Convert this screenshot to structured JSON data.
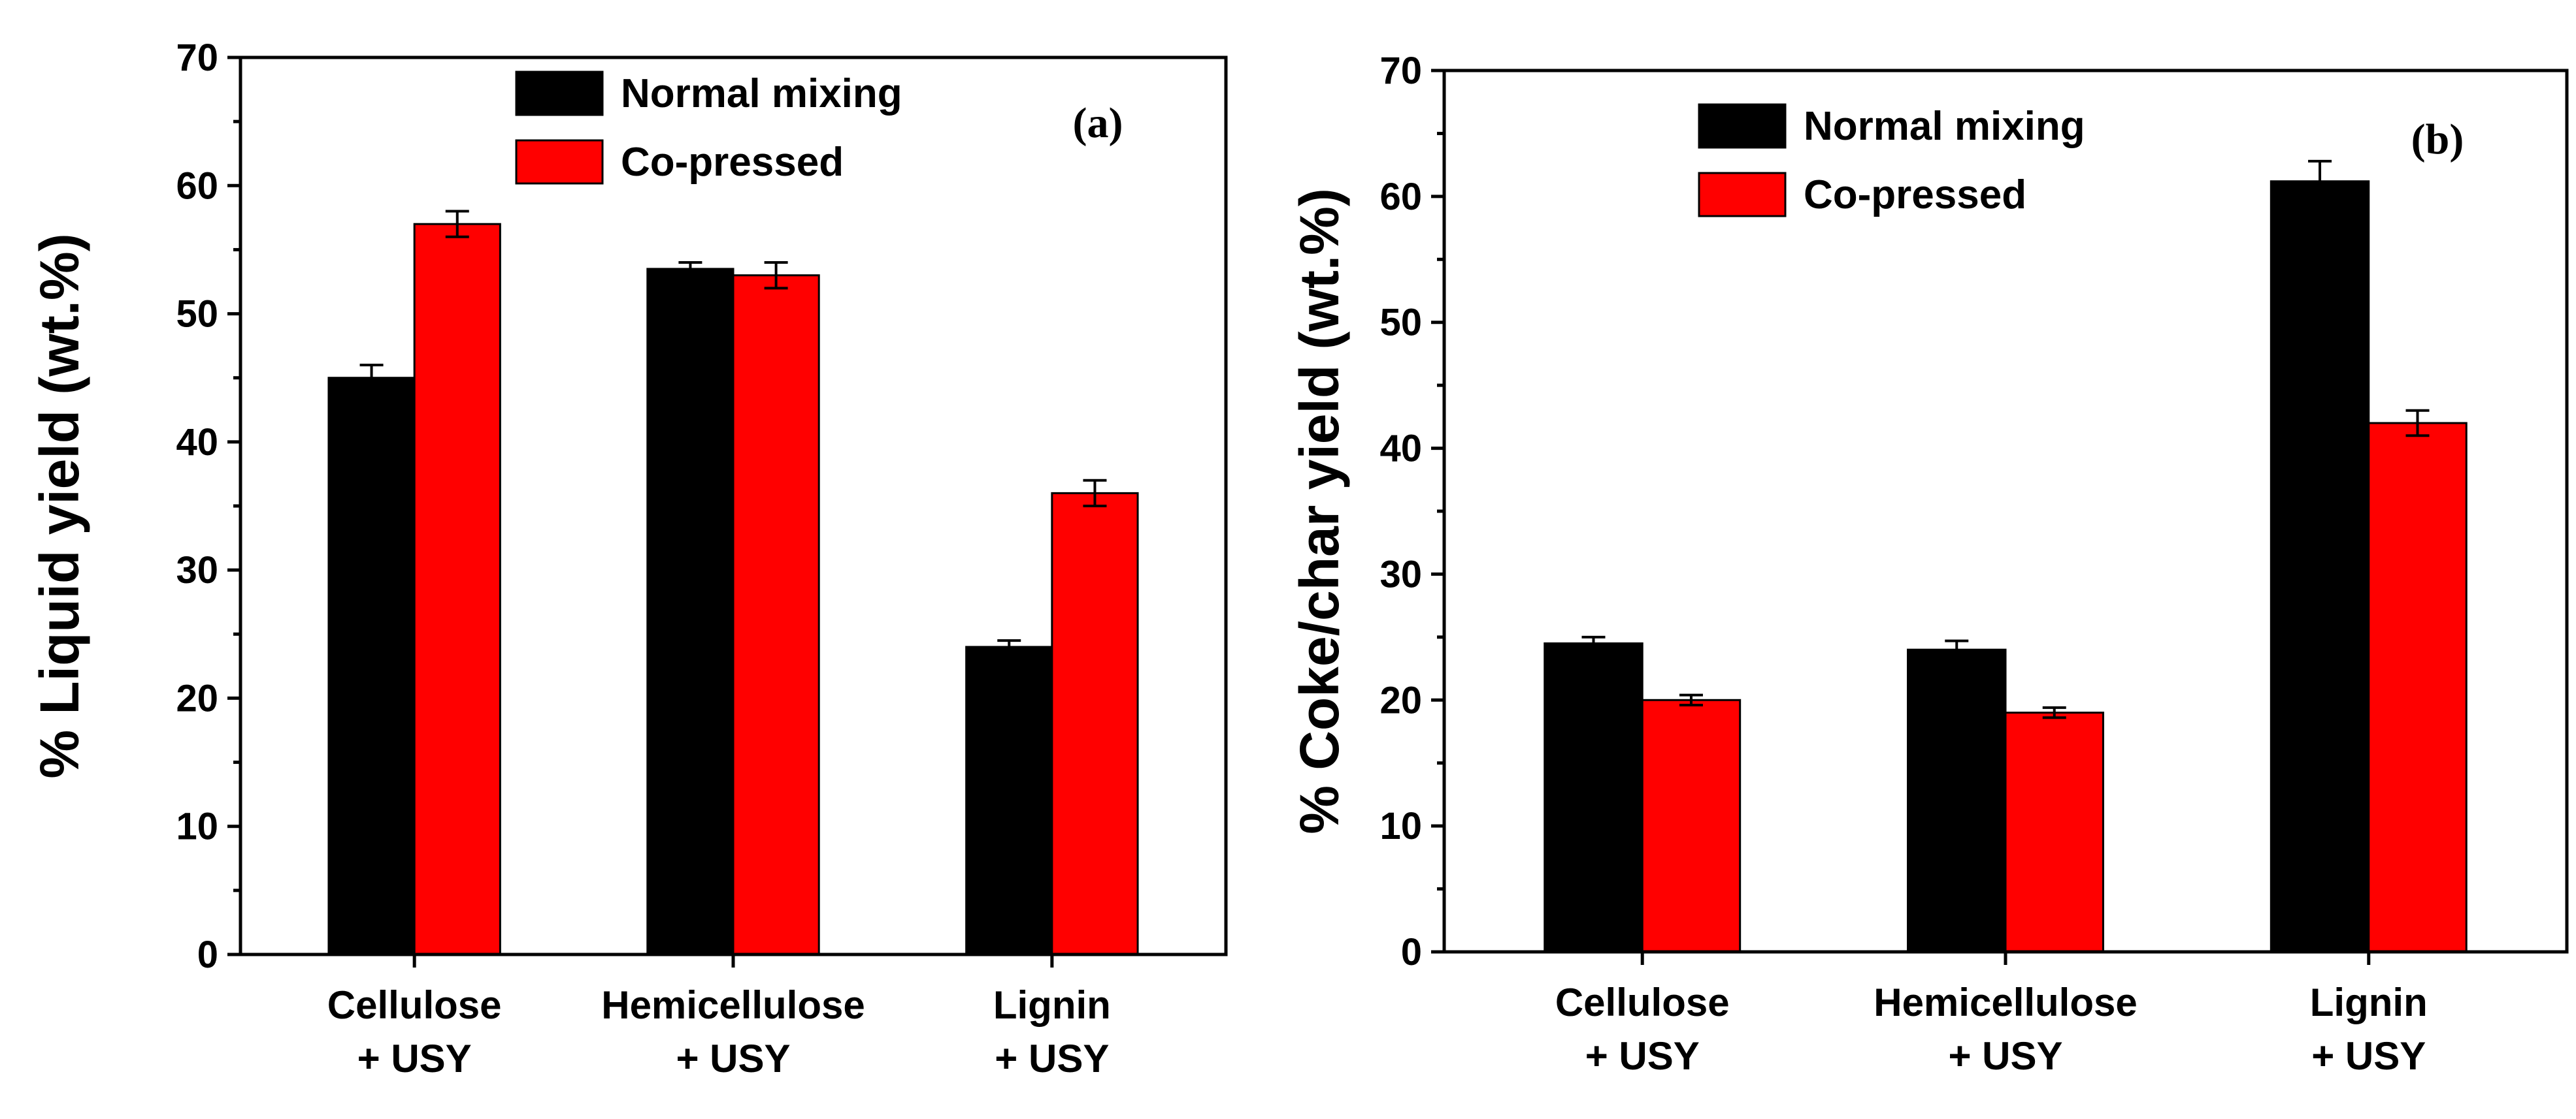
{
  "chart_data": [
    {
      "type": "bar",
      "panel_label": "(a)",
      "categories": [
        [
          "Cellulose",
          "+ USY"
        ],
        [
          "Hemicellulose",
          "+ USY"
        ],
        [
          "Lignin",
          "+ USY"
        ]
      ],
      "ylabel": "% Liquid yield (wt.%)",
      "ylim": [
        0,
        70
      ],
      "yticks": [
        0,
        10,
        20,
        30,
        40,
        50,
        60,
        70
      ],
      "legend_position": "top-center",
      "series": [
        {
          "name": "Normal mixing",
          "color": "#000000",
          "values": [
            45,
            53.5,
            24
          ],
          "errors": [
            1,
            0.5,
            0.5
          ]
        },
        {
          "name": "Co-pressed",
          "color": "#ff0000",
          "values": [
            57,
            53,
            36
          ],
          "errors": [
            1,
            1,
            1
          ]
        }
      ]
    },
    {
      "type": "bar",
      "panel_label": "(b)",
      "categories": [
        [
          "Cellulose",
          "+ USY"
        ],
        [
          "Hemicellulose",
          "+ USY"
        ],
        [
          "Lignin",
          "+ USY"
        ]
      ],
      "ylabel": "% Coke/char yield (wt.%)",
      "ylim": [
        0,
        70
      ],
      "yticks": [
        0,
        10,
        20,
        30,
        40,
        50,
        60,
        70
      ],
      "legend_position": "top-center",
      "series": [
        {
          "name": "Normal mixing",
          "color": "#000000",
          "values": [
            24.5,
            24,
            61.2
          ],
          "errors": [
            0.5,
            0.7,
            1.6
          ]
        },
        {
          "name": "Co-pressed",
          "color": "#ff0000",
          "values": [
            20,
            19,
            42
          ],
          "errors": [
            0.4,
            0.4,
            1
          ]
        }
      ]
    }
  ]
}
